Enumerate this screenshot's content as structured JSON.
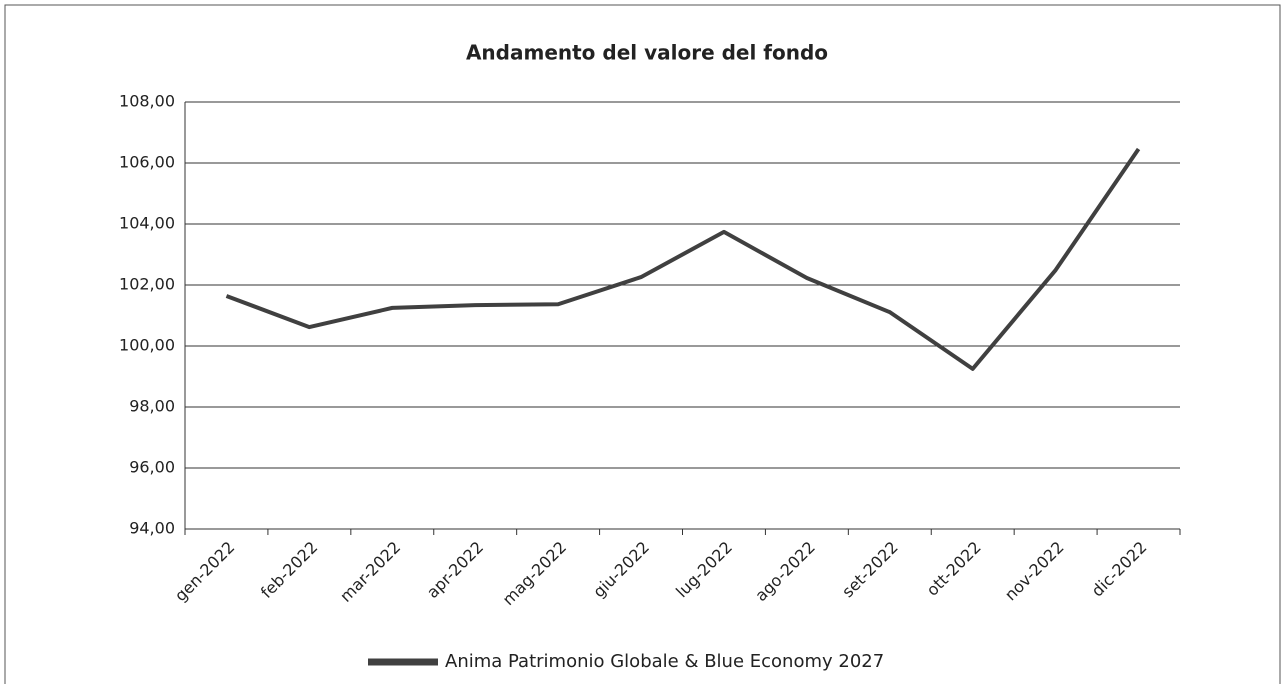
{
  "chart_data": {
    "type": "line",
    "title": "Andamento del valore del fondo",
    "categories": [
      "gen-2022",
      "feb-2022",
      "mar-2022",
      "apr-2022",
      "mag-2022",
      "giu-2022",
      "lug-2022",
      "ago-2022",
      "set-2022",
      "ott-2022",
      "nov-2022",
      "dic-2022"
    ],
    "series": [
      {
        "name": "Anima Patrimonio Globale & Blue Economy 2027",
        "color": "#404040",
        "values": [
          101.64,
          100.62,
          101.25,
          101.34,
          101.37,
          102.26,
          103.74,
          102.23,
          101.11,
          99.25,
          102.49,
          106.46
        ]
      }
    ],
    "ylim": [
      94,
      108
    ],
    "yticks": [
      {
        "value": 94,
        "label": "94,00"
      },
      {
        "value": 96,
        "label": "96,00"
      },
      {
        "value": 98,
        "label": "98,00"
      },
      {
        "value": 100,
        "label": "100,00"
      },
      {
        "value": 102,
        "label": "102,00"
      },
      {
        "value": 104,
        "label": "104,00"
      },
      {
        "value": 106,
        "label": "106,00"
      },
      {
        "value": 108,
        "label": "108,00"
      }
    ],
    "grid": true,
    "legend": "bottom"
  }
}
